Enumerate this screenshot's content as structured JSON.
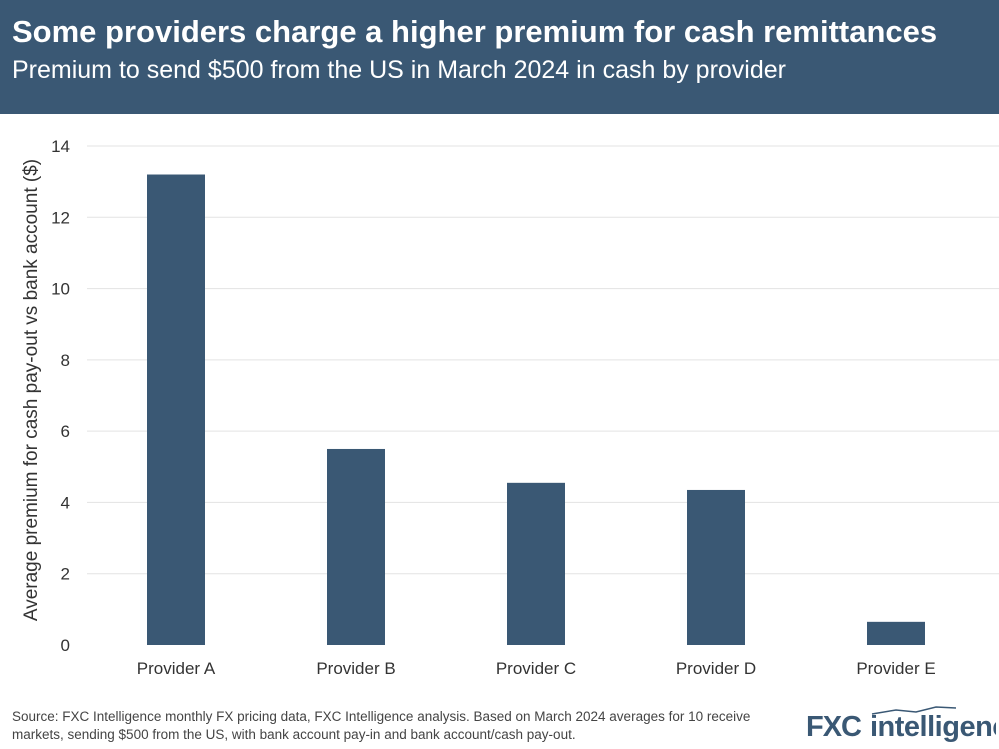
{
  "header": {
    "title": "Some providers charge a higher premium for cash remittances",
    "subtitle": "Premium to send $500 from the US in March 2024 in cash by provider"
  },
  "chart_data": {
    "type": "bar",
    "categories": [
      "Provider A",
      "Provider B",
      "Provider C",
      "Provider D",
      "Provider E"
    ],
    "values": [
      13.2,
      5.5,
      4.55,
      4.35,
      0.65
    ],
    "xlabel": "",
    "ylabel": "Average premium for cash pay-out vs bank account ($)",
    "ylim": [
      0,
      14
    ],
    "yticks": [
      0,
      2,
      4,
      6,
      8,
      10,
      12,
      14
    ],
    "grid": true,
    "bar_color": "#3a5874"
  },
  "footer": {
    "source": "Source: FXC Intelligence monthly FX pricing data, FXC Intelligence analysis. Based on March 2024 averages for 10 receive markets, sending $500 from the US, with bank account pay-in and bank account/cash pay-out."
  },
  "logo": {
    "text": "FXCintelligence"
  }
}
